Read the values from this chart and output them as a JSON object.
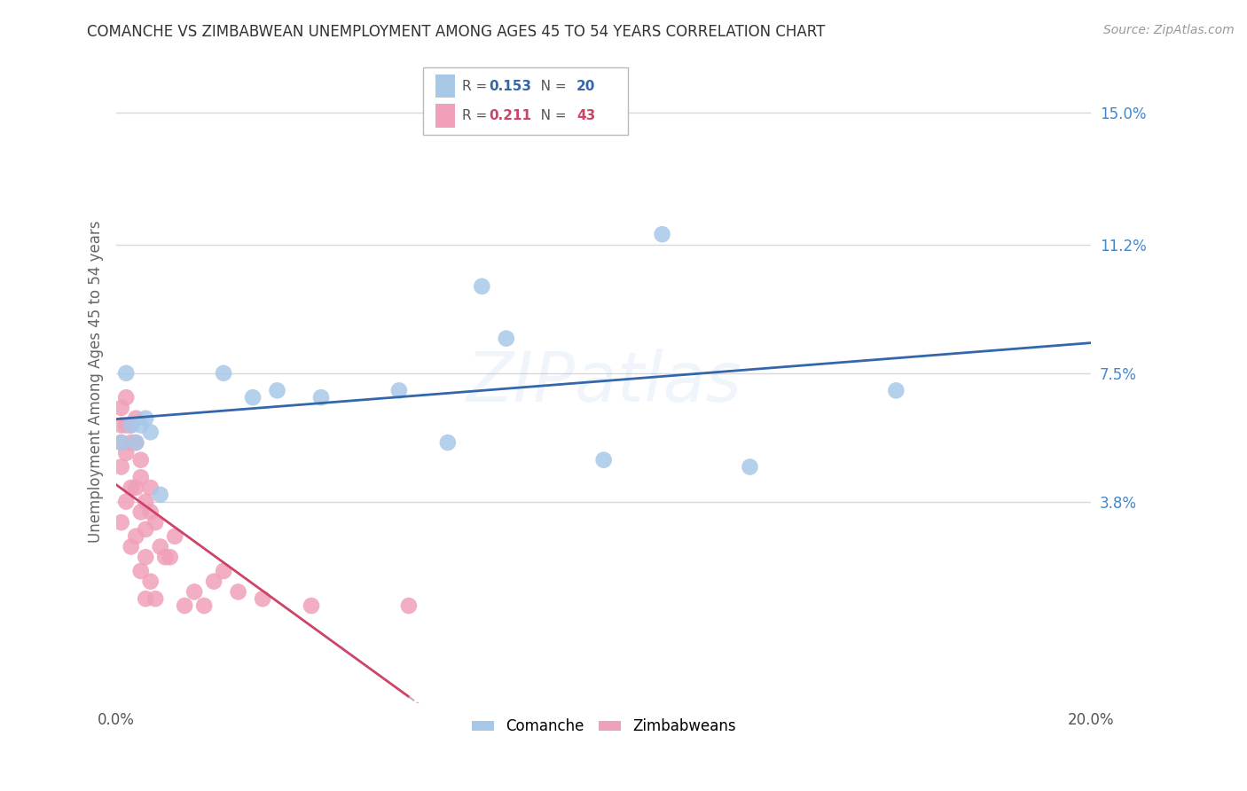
{
  "title": "COMANCHE VS ZIMBABWEAN UNEMPLOYMENT AMONG AGES 45 TO 54 YEARS CORRELATION CHART",
  "source": "Source: ZipAtlas.com",
  "ylabel": "Unemployment Among Ages 45 to 54 years",
  "xlim": [
    0.0,
    0.2
  ],
  "ylim": [
    -0.02,
    0.165
  ],
  "xticks": [
    0.0,
    0.04,
    0.08,
    0.12,
    0.16,
    0.2
  ],
  "xticklabels": [
    "0.0%",
    "",
    "",
    "",
    "",
    "20.0%"
  ],
  "right_ytick_values": [
    0.038,
    0.075,
    0.112,
    0.15
  ],
  "right_ytick_labels": [
    "3.8%",
    "7.5%",
    "11.2%",
    "15.0%"
  ],
  "grid_color": "#d8d8d8",
  "background_color": "#ffffff",
  "watermark": "ZIPatlas",
  "comanche_R": 0.153,
  "comanche_N": 20,
  "zimbabwean_R": 0.211,
  "zimbabwean_N": 43,
  "comanche_color": "#a8c8e8",
  "comanche_line_color": "#3366aa",
  "zimbabwean_color": "#f0a0b8",
  "zimbabwean_line_color": "#cc4466",
  "zimbabwean_dash_color": "#ccaabb",
  "comanche_x": [
    0.001,
    0.002,
    0.003,
    0.004,
    0.005,
    0.006,
    0.007,
    0.009,
    0.022,
    0.028,
    0.033,
    0.042,
    0.058,
    0.068,
    0.075,
    0.08,
    0.1,
    0.112,
    0.13,
    0.16
  ],
  "comanche_y": [
    0.055,
    0.075,
    0.06,
    0.055,
    0.06,
    0.062,
    0.058,
    0.04,
    0.075,
    0.068,
    0.07,
    0.068,
    0.07,
    0.055,
    0.1,
    0.085,
    0.05,
    0.115,
    0.048,
    0.07
  ],
  "zimbabwean_x": [
    0.001,
    0.001,
    0.001,
    0.001,
    0.001,
    0.002,
    0.002,
    0.002,
    0.002,
    0.003,
    0.003,
    0.003,
    0.003,
    0.004,
    0.004,
    0.004,
    0.004,
    0.005,
    0.005,
    0.005,
    0.005,
    0.006,
    0.006,
    0.006,
    0.006,
    0.007,
    0.007,
    0.007,
    0.008,
    0.008,
    0.009,
    0.01,
    0.011,
    0.012,
    0.014,
    0.016,
    0.018,
    0.02,
    0.022,
    0.025,
    0.03,
    0.04,
    0.06
  ],
  "zimbabwean_y": [
    0.065,
    0.06,
    0.055,
    0.048,
    0.032,
    0.068,
    0.06,
    0.052,
    0.038,
    0.06,
    0.055,
    0.042,
    0.025,
    0.062,
    0.055,
    0.042,
    0.028,
    0.05,
    0.045,
    0.035,
    0.018,
    0.038,
    0.03,
    0.022,
    0.01,
    0.042,
    0.035,
    0.015,
    0.032,
    0.01,
    0.025,
    0.022,
    0.022,
    0.028,
    0.008,
    0.012,
    0.008,
    0.015,
    0.018,
    0.012,
    0.01,
    0.008,
    0.008
  ]
}
